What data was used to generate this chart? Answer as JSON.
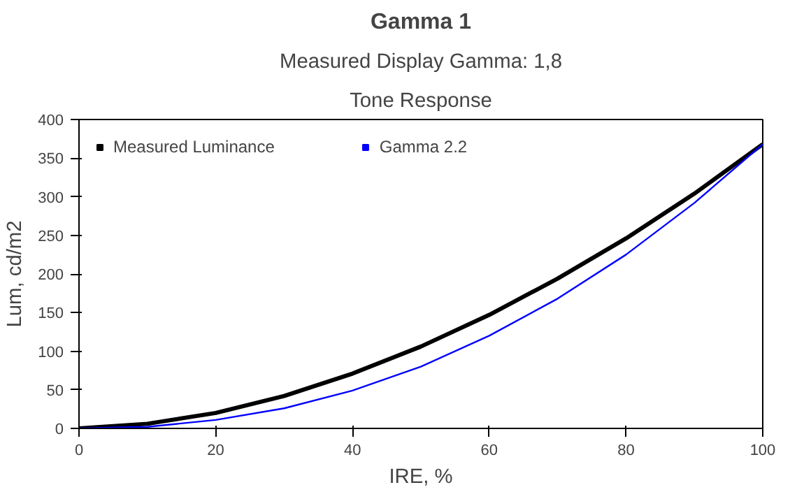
{
  "chart_data": {
    "type": "line",
    "title": "Gamma 1",
    "subtitle": "Measured Display Gamma: 1,8",
    "annotations": [
      "Tone Response"
    ],
    "xlabel": "IRE, %",
    "ylabel": "Lum, cd/m2",
    "x": [
      0,
      10,
      20,
      30,
      40,
      50,
      60,
      70,
      80,
      90,
      100
    ],
    "series": [
      {
        "name": "Measured Luminance",
        "color": "#000000",
        "values": [
          0,
          6,
          20,
          42,
          71,
          106,
          147,
          194,
          246,
          304,
          368
        ]
      },
      {
        "name": "Gamma 2.2",
        "color": "#0000ff",
        "values": [
          0,
          2,
          11,
          26,
          49,
          80,
          120,
          168,
          225,
          292,
          368
        ]
      }
    ],
    "xlim": [
      0,
      100
    ],
    "xticks": [
      0,
      20,
      40,
      60,
      80,
      100
    ],
    "ylim": [
      0,
      400
    ],
    "yticks": [
      0,
      50,
      100,
      150,
      200,
      250,
      300,
      350,
      400
    ],
    "grid": false,
    "legend": "top left",
    "marker": "none",
    "line_style": "solid"
  }
}
